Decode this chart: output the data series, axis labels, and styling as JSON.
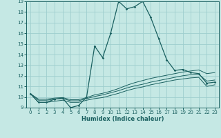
{
  "xlabel": "Humidex (Indice chaleur)",
  "ylabel": "",
  "xlim": [
    -0.5,
    23.5
  ],
  "ylim": [
    9,
    19
  ],
  "xticks": [
    0,
    1,
    2,
    3,
    4,
    5,
    6,
    7,
    8,
    9,
    10,
    11,
    12,
    13,
    14,
    15,
    16,
    17,
    18,
    19,
    20,
    21,
    22,
    23
  ],
  "yticks": [
    9,
    10,
    11,
    12,
    13,
    14,
    15,
    16,
    17,
    18,
    19
  ],
  "background_color": "#c5e8e4",
  "grid_color": "#9ecece",
  "line_color": "#1a6060",
  "series": [
    [
      10.3,
      9.5,
      9.5,
      9.8,
      9.9,
      9.0,
      9.2,
      10.0,
      14.8,
      13.7,
      16.0,
      19.0,
      18.3,
      18.5,
      19.0,
      17.5,
      15.5,
      13.5,
      12.5,
      12.6,
      12.3,
      12.2,
      11.3,
      11.4
    ],
    [
      10.3,
      9.8,
      9.8,
      9.9,
      9.95,
      9.75,
      9.75,
      9.95,
      10.2,
      10.35,
      10.55,
      10.8,
      11.1,
      11.35,
      11.55,
      11.75,
      11.9,
      12.05,
      12.2,
      12.35,
      12.45,
      12.55,
      12.2,
      12.3
    ],
    [
      10.3,
      9.7,
      9.7,
      9.8,
      9.85,
      9.65,
      9.65,
      9.85,
      10.05,
      10.2,
      10.4,
      10.6,
      10.85,
      11.05,
      11.2,
      11.4,
      11.55,
      11.7,
      11.85,
      12.0,
      12.1,
      12.15,
      11.5,
      11.6
    ],
    [
      10.3,
      9.5,
      9.5,
      9.6,
      9.7,
      9.5,
      9.5,
      9.7,
      9.85,
      9.95,
      10.15,
      10.35,
      10.6,
      10.8,
      10.95,
      11.15,
      11.3,
      11.45,
      11.6,
      11.7,
      11.8,
      11.85,
      11.0,
      11.15
    ]
  ]
}
